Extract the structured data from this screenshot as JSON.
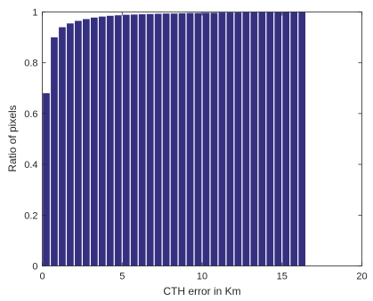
{
  "chart_data": {
    "type": "bar",
    "title": "",
    "xlabel": "CTH error in Km",
    "ylabel": "Ratio of pixels",
    "xlim": [
      0,
      20
    ],
    "ylim": [
      0,
      1
    ],
    "xticks": [
      0,
      5,
      10,
      15,
      20
    ],
    "xtick_labels": [
      "0",
      "5",
      "10",
      "15",
      "20"
    ],
    "yticks": [
      0,
      0.2,
      0.4,
      0.6,
      0.8,
      1
    ],
    "ytick_labels": [
      "0",
      "0.2",
      "0.4",
      "0.6",
      "0.8",
      "1"
    ],
    "grid": false,
    "bar_color": "#35307f",
    "x": [
      0.25,
      0.75,
      1.25,
      1.75,
      2.25,
      2.75,
      3.25,
      3.75,
      4.25,
      4.75,
      5.25,
      5.75,
      6.25,
      6.75,
      7.25,
      7.75,
      8.25,
      8.75,
      9.25,
      9.75,
      10.25,
      10.75,
      11.25,
      11.75,
      12.25,
      12.75,
      13.25,
      13.75,
      14.25,
      14.75,
      15.25,
      15.75,
      16.25
    ],
    "values": [
      0.68,
      0.9,
      0.94,
      0.955,
      0.965,
      0.972,
      0.978,
      0.982,
      0.985,
      0.987,
      0.989,
      0.99,
      0.991,
      0.992,
      0.993,
      0.994,
      0.994,
      0.995,
      0.996,
      0.996,
      0.997,
      0.997,
      0.998,
      0.998,
      0.998,
      0.999,
      0.999,
      0.999,
      0.999,
      0.999,
      1.0,
      1.0,
      1.0
    ]
  }
}
